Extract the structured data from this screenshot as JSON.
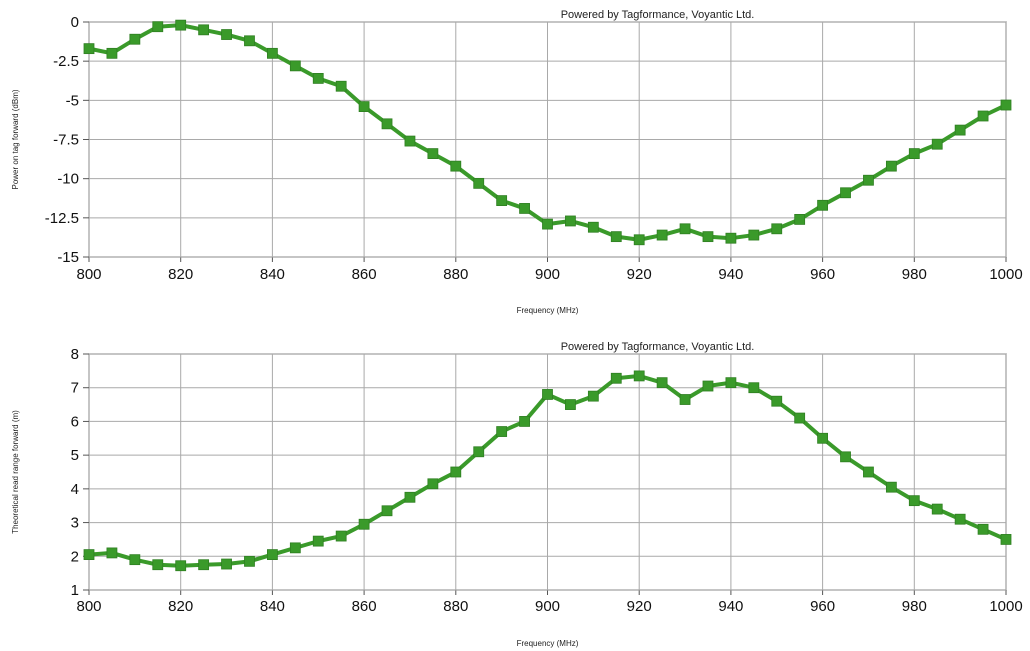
{
  "chart_data": [
    {
      "type": "line",
      "title": "",
      "annotation": "Powered by Tagformance, Voyantic Ltd.",
      "xlabel": "Frequency (MHz)",
      "ylabel": "Power on tag forward (dBm)",
      "xlim": [
        800,
        1000
      ],
      "ylim": [
        -15,
        0
      ],
      "xticks": [
        "800",
        "820",
        "840",
        "860",
        "880",
        "900",
        "920",
        "940",
        "960",
        "980",
        "1000"
      ],
      "yticks": [
        "0",
        "-2.5",
        "-5",
        "-7.5",
        "-10",
        "-12.5",
        "-15"
      ],
      "ytick_values": [
        0,
        -2.5,
        -5,
        -7.5,
        -10,
        -12.5,
        -15
      ],
      "xtick_values": [
        800,
        820,
        840,
        860,
        880,
        900,
        920,
        940,
        960,
        980,
        1000
      ],
      "grid": true,
      "color": "#3a9a2a",
      "series": [
        {
          "name": "",
          "x": [
            800,
            805,
            810,
            815,
            820,
            825,
            830,
            835,
            840,
            845,
            850,
            855,
            860,
            865,
            870,
            875,
            880,
            885,
            890,
            895,
            900,
            905,
            910,
            915,
            920,
            925,
            930,
            935,
            940,
            945,
            950,
            955,
            960,
            965,
            970,
            975,
            980,
            985,
            990,
            995,
            1000
          ],
          "y": [
            -1.7,
            -2.0,
            -1.1,
            -0.3,
            -0.2,
            -0.5,
            -0.8,
            -1.2,
            -2.0,
            -2.8,
            -3.6,
            -4.1,
            -5.4,
            -6.5,
            -7.6,
            -8.4,
            -9.2,
            -10.3,
            -11.4,
            -11.9,
            -12.9,
            -12.7,
            -13.1,
            -13.7,
            -13.9,
            -13.6,
            -13.2,
            -13.7,
            -13.8,
            -13.6,
            -13.2,
            -12.6,
            -11.7,
            -10.9,
            -10.1,
            -9.2,
            -8.4,
            -7.8,
            -6.9,
            -6.0,
            -5.3
          ]
        }
      ]
    },
    {
      "type": "line",
      "title": "",
      "annotation": "Powered by Tagformance, Voyantic Ltd.",
      "xlabel": "Frequency (MHz)",
      "ylabel": "Theoretical read range forward (m)",
      "xlim": [
        800,
        1000
      ],
      "ylim": [
        1,
        8
      ],
      "xticks": [
        "800",
        "820",
        "840",
        "860",
        "880",
        "900",
        "920",
        "940",
        "960",
        "980",
        "1000"
      ],
      "yticks": [
        "8",
        "7",
        "6",
        "5",
        "4",
        "3",
        "2",
        "1"
      ],
      "ytick_values": [
        8,
        7,
        6,
        5,
        4,
        3,
        2,
        1
      ],
      "xtick_values": [
        800,
        820,
        840,
        860,
        880,
        900,
        920,
        940,
        960,
        980,
        1000
      ],
      "grid": true,
      "color": "#3a9a2a",
      "series": [
        {
          "name": "",
          "x": [
            800,
            805,
            810,
            815,
            820,
            825,
            830,
            835,
            840,
            845,
            850,
            855,
            860,
            865,
            870,
            875,
            880,
            885,
            890,
            895,
            900,
            905,
            910,
            915,
            920,
            925,
            930,
            935,
            940,
            945,
            950,
            955,
            960,
            965,
            970,
            975,
            980,
            985,
            990,
            995,
            1000
          ],
          "y": [
            2.05,
            2.1,
            1.9,
            1.75,
            1.72,
            1.75,
            1.77,
            1.85,
            2.05,
            2.25,
            2.45,
            2.6,
            2.95,
            3.35,
            3.75,
            4.15,
            4.5,
            5.1,
            5.7,
            6.0,
            6.8,
            6.5,
            6.75,
            7.28,
            7.35,
            7.15,
            6.65,
            7.05,
            7.15,
            7.0,
            6.6,
            6.1,
            5.5,
            4.95,
            4.5,
            4.05,
            3.65,
            3.4,
            3.1,
            2.8,
            2.5
          ]
        }
      ]
    }
  ]
}
